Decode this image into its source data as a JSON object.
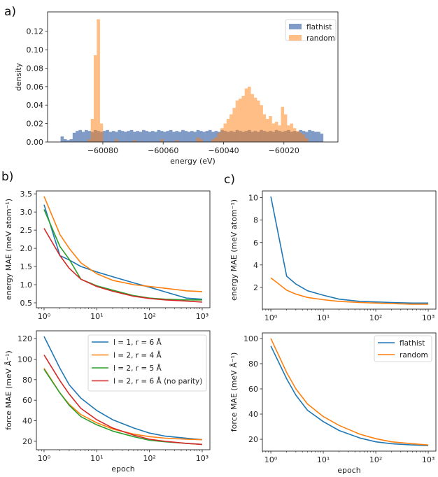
{
  "panel_labels": {
    "a": "a)",
    "b": "b)",
    "c": "c)"
  },
  "colors": {
    "blue": "#1f77b4",
    "orange": "#ff7f0e",
    "green": "#2ca02c",
    "red": "#d62728",
    "hist_flathist": "#4c72b0",
    "hist_random": "#ff7f0e"
  },
  "chart_data": [
    {
      "id": "a",
      "type": "bar",
      "subtype": "histogram",
      "xlabel": "energy (eV)",
      "ylabel": "density",
      "xlim": [
        -60098.3,
        -60002.1
      ],
      "ylim": [
        0,
        0.141
      ],
      "xticks": [
        -60080,
        -60060,
        -60040,
        -60020
      ],
      "xtick_labels": [
        "−60080",
        "−60060",
        "−60040",
        "−60020"
      ],
      "yticks": [
        0,
        0.02,
        0.04,
        0.06,
        0.08,
        0.1,
        0.12
      ],
      "ytick_labels": [
        "0.00",
        "0.02",
        "0.04",
        "0.06",
        "0.08",
        "0.10",
        "0.12"
      ],
      "legend": "top-right",
      "grid": false,
      "series": [
        {
          "name": "flathist",
          "color": "#4c72b0",
          "bin_start": -60094,
          "bin_width": 1,
          "values": [
            0.006,
            0.003,
            0.002,
            0.003,
            0.01,
            0.012,
            0.013,
            0.011,
            0.013,
            0.012,
            0.011,
            0.013,
            0.012,
            0.011,
            0.012,
            0.013,
            0.011,
            0.012,
            0.011,
            0.013,
            0.012,
            0.011,
            0.012,
            0.013,
            0.011,
            0.012,
            0.011,
            0.013,
            0.012,
            0.011,
            0.012,
            0.011,
            0.013,
            0.012,
            0.011,
            0.012,
            0.013,
            0.011,
            0.012,
            0.011,
            0.013,
            0.012,
            0.011,
            0.012,
            0.011,
            0.013,
            0.012,
            0.011,
            0.012,
            0.013,
            0.011,
            0.012,
            0.011,
            0.013,
            0.012,
            0.011,
            0.012,
            0.011,
            0.013,
            0.012,
            0.011,
            0.012,
            0.013,
            0.011,
            0.012,
            0.011,
            0.013,
            0.012,
            0.011,
            0.012,
            0.011,
            0.013,
            0.012,
            0.011,
            0.012,
            0.013,
            0.011,
            0.012,
            0.011,
            0.013,
            0.012,
            0.011,
            0.013,
            0.012,
            0.011,
            0.011,
            0.009
          ]
        },
        {
          "name": "random",
          "color": "#ff7f0e",
          "bin_start": -60085,
          "bin_width": 1,
          "values": [
            0.003,
            0.025,
            0.094,
            0.133,
            0.02,
            0,
            0,
            0,
            0,
            0.003,
            0,
            0,
            0,
            0,
            0,
            0.002,
            0,
            0,
            0,
            0,
            0,
            0,
            0,
            0,
            0.003,
            0,
            0,
            0,
            0,
            0.002,
            0,
            0,
            0,
            0,
            0,
            0,
            0.005,
            0.003,
            0,
            0,
            0,
            0.003,
            0.005,
            0.01,
            0.015,
            0.02,
            0.025,
            0.03,
            0.037,
            0.045,
            0.047,
            0.05,
            0.058,
            0.06,
            0.052,
            0.048,
            0.045,
            0.04,
            0.03,
            0.025,
            0.028,
            0.02,
            0.022,
            0.018,
            0.038,
            0.03,
            0.018,
            0.02,
            0.015,
            0.012,
            0.01,
            0.008,
            0.004
          ]
        }
      ]
    },
    {
      "id": "b-top",
      "type": "line",
      "xlabel": "",
      "ylabel": "energy MAE (meV atom⁻¹)",
      "xscale": "log",
      "xlim": [
        0.715,
        1400
      ],
      "ylim": [
        0.365,
        3.58
      ],
      "xticks": [
        1,
        10,
        100,
        1000
      ],
      "xtick_labels": [
        "10⁰",
        "10¹",
        "10²",
        "10³"
      ],
      "yticks": [
        0.5,
        1.0,
        1.5,
        2.0,
        2.5,
        3.0,
        3.5
      ],
      "ytick_labels": [
        "0.5",
        "1.0",
        "1.5",
        "2.0",
        "2.5",
        "3.0",
        "3.5"
      ],
      "x": [
        1,
        2,
        3,
        5,
        10,
        20,
        50,
        100,
        200,
        500,
        1000
      ],
      "series": [
        {
          "color": "#1f77b4",
          "values": [
            3.2,
            1.8,
            1.68,
            1.5,
            1.35,
            1.22,
            1.05,
            0.93,
            0.8,
            0.63,
            0.6
          ]
        },
        {
          "color": "#ff7f0e",
          "values": [
            3.43,
            2.38,
            2.0,
            1.6,
            1.3,
            1.12,
            1.0,
            0.95,
            0.9,
            0.83,
            0.81
          ]
        },
        {
          "color": "#2ca02c",
          "values": [
            3.07,
            2.05,
            1.7,
            1.15,
            0.97,
            0.85,
            0.7,
            0.63,
            0.6,
            0.58,
            0.58
          ]
        },
        {
          "color": "#d62728",
          "values": [
            2.55,
            1.8,
            1.45,
            1.15,
            0.95,
            0.82,
            0.68,
            0.62,
            0.58,
            0.55,
            0.52
          ]
        }
      ]
    },
    {
      "id": "b-bottom",
      "type": "line",
      "xlabel": "epoch",
      "ylabel": "force MAE (meV Å⁻¹)",
      "xscale": "log",
      "xlim": [
        0.715,
        1400
      ],
      "ylim": [
        11.8,
        127.5
      ],
      "xticks": [
        1,
        10,
        100,
        1000
      ],
      "xtick_labels": [
        "10⁰",
        "10¹",
        "10²",
        "10³"
      ],
      "yticks": [
        20,
        40,
        60,
        80,
        100,
        120
      ],
      "ytick_labels": [
        "20",
        "40",
        "60",
        "80",
        "100",
        "120"
      ],
      "legend": "top-right",
      "x": [
        1,
        2,
        3,
        5,
        10,
        20,
        50,
        100,
        200,
        500,
        1000
      ],
      "series": [
        {
          "name": "l = 1, r = 6 Å",
          "color": "#1f77b4",
          "values": [
            122,
            91,
            75,
            62,
            50,
            41,
            33,
            28,
            25,
            23,
            21.5
          ]
        },
        {
          "name": "l = 2, r = 4 Å",
          "color": "#ff7f0e",
          "values": [
            91,
            67,
            56,
            46,
            38,
            32,
            27,
            24.5,
            23,
            22,
            21.5
          ]
        },
        {
          "name": "l = 2, r = 5 Å",
          "color": "#2ca02c",
          "values": [
            90,
            67,
            55,
            44,
            36,
            30,
            24.5,
            21,
            19.5,
            18,
            17
          ]
        },
        {
          "name": "l = 2, r = 6 Å (no parity)",
          "color": "#d62728",
          "values": [
            104,
            79,
            66,
            52,
            41,
            33,
            26,
            22,
            20,
            18,
            17
          ]
        }
      ]
    },
    {
      "id": "c-top",
      "type": "line",
      "xlabel": "",
      "ylabel": "energy MAE (meV atom⁻¹)",
      "xscale": "log",
      "xlim": [
        0.69,
        1400
      ],
      "ylim": [
        0.06,
        10.6
      ],
      "xticks": [
        1,
        10,
        100,
        1000
      ],
      "xtick_labels": [
        "10⁰",
        "10¹",
        "10²",
        "10³"
      ],
      "yticks": [
        2,
        4,
        6,
        8,
        10
      ],
      "ytick_labels": [
        "2",
        "4",
        "6",
        "8",
        "10"
      ],
      "x": [
        1,
        2,
        3,
        5,
        10,
        20,
        50,
        100,
        200,
        500,
        1000
      ],
      "series": [
        {
          "color": "#1f77b4",
          "values": [
            10.1,
            3.0,
            2.3,
            1.7,
            1.3,
            0.95,
            0.75,
            0.7,
            0.65,
            0.6,
            0.6
          ]
        },
        {
          "color": "#ff7f0e",
          "values": [
            2.85,
            1.75,
            1.4,
            1.1,
            0.9,
            0.75,
            0.65,
            0.6,
            0.55,
            0.5,
            0.5
          ]
        }
      ]
    },
    {
      "id": "c-bottom",
      "type": "line",
      "xlabel": "epoch",
      "ylabel": "force MAE (meV Å⁻¹)",
      "xscale": "log",
      "xlim": [
        0.69,
        1400
      ],
      "ylim": [
        10.6,
        104.4
      ],
      "xticks": [
        1,
        10,
        100,
        1000
      ],
      "xtick_labels": [
        "10⁰",
        "10¹",
        "10²",
        "10³"
      ],
      "yticks": [
        20,
        40,
        60,
        80,
        100
      ],
      "ytick_labels": [
        "20",
        "40",
        "60",
        "80",
        "100"
      ],
      "legend": "top-right",
      "x": [
        1,
        2,
        3,
        5,
        10,
        20,
        50,
        100,
        200,
        500,
        1000
      ],
      "series": [
        {
          "name": "flathist",
          "color": "#1f77b4",
          "values": [
            94,
            68,
            55,
            43,
            34,
            27,
            21,
            18,
            16.5,
            15.5,
            15
          ]
        },
        {
          "name": "random",
          "color": "#ff7f0e",
          "values": [
            100,
            73,
            60,
            48,
            38,
            31,
            24,
            20.5,
            18,
            16.5,
            15.5
          ]
        }
      ]
    }
  ]
}
